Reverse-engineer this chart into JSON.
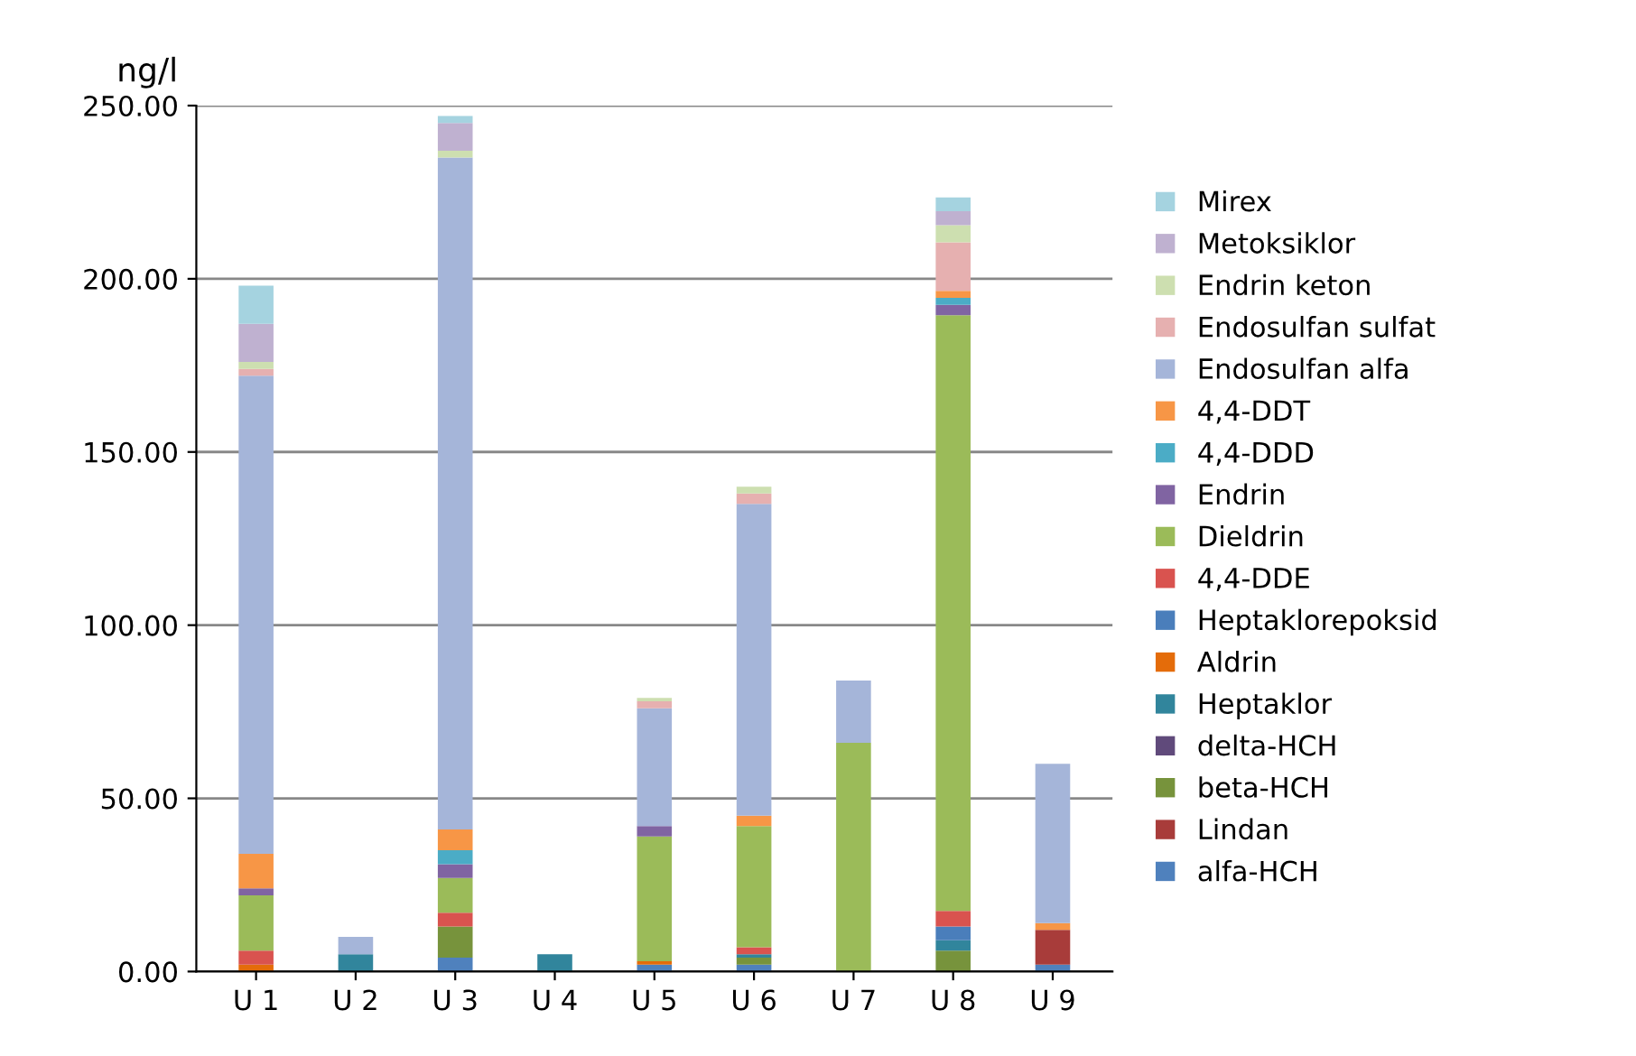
{
  "chart_data": {
    "type": "bar",
    "stacked": true,
    "ylabel": "ng/l",
    "categories": [
      "U 1",
      "U 2",
      "U 3",
      "U 4",
      "U 5",
      "U 6",
      "U 7",
      "U 8",
      "U 9"
    ],
    "series": [
      {
        "name": "alfa-HCH",
        "color": "#4f81bd",
        "values": [
          0,
          0,
          4,
          0,
          2,
          2,
          0,
          0,
          2
        ]
      },
      {
        "name": "Lindan",
        "color": "#a83c3a",
        "values": [
          0,
          0,
          0,
          0,
          0,
          0,
          0,
          0,
          10
        ]
      },
      {
        "name": "beta-HCH",
        "color": "#77933c",
        "values": [
          0,
          0,
          9,
          0,
          0,
          2,
          0,
          6,
          0
        ]
      },
      {
        "name": "delta-HCH",
        "color": "#604a7b",
        "values": [
          0,
          0,
          0,
          0,
          0,
          0,
          0,
          0,
          0
        ]
      },
      {
        "name": "Heptaklor",
        "color": "#31859c",
        "values": [
          0,
          5,
          0,
          5,
          0,
          1,
          0,
          3,
          0
        ]
      },
      {
        "name": "Aldrin",
        "color": "#e46c0a",
        "values": [
          2,
          0,
          0,
          0,
          1,
          0,
          0,
          0,
          0
        ]
      },
      {
        "name": "Heptaklorepoksid",
        "color": "#4a7ebb",
        "values": [
          0,
          0,
          0,
          0,
          0,
          0,
          0,
          4,
          0
        ]
      },
      {
        "name": "4,4-DDE",
        "color": "#d9534f",
        "values": [
          4,
          0,
          4,
          0,
          0,
          2,
          0,
          4.5,
          0
        ]
      },
      {
        "name": "Dieldrin",
        "color": "#9bbb59",
        "values": [
          16,
          0,
          10,
          0,
          36,
          35,
          66,
          172,
          0
        ]
      },
      {
        "name": "Endrin",
        "color": "#8064a2",
        "values": [
          2,
          0,
          4,
          0,
          3,
          0,
          0,
          3,
          0
        ]
      },
      {
        "name": "4,4-DDD",
        "color": "#4bacc6",
        "values": [
          0,
          0,
          4,
          0,
          0,
          0,
          0,
          2,
          0
        ]
      },
      {
        "name": "4,4-DDT",
        "color": "#f79646",
        "values": [
          10,
          0,
          6,
          0,
          0,
          3,
          0,
          2,
          2
        ]
      },
      {
        "name": "Endosulfan alfa",
        "color": "#a5b5d9",
        "values": [
          138,
          5,
          194,
          0,
          34,
          90,
          18,
          0,
          46
        ]
      },
      {
        "name": "Endosulfan sulfat",
        "color": "#e6b0b0",
        "values": [
          2,
          0,
          0,
          0,
          2,
          3,
          0,
          14,
          0
        ]
      },
      {
        "name": "Endrin keton",
        "color": "#cddfb0",
        "values": [
          2,
          0,
          2,
          0,
          1,
          2,
          0,
          5,
          0
        ]
      },
      {
        "name": "Metoksiklor",
        "color": "#bfb1d0",
        "values": [
          11,
          0,
          8,
          0,
          0,
          0,
          0,
          4,
          0
        ]
      },
      {
        "name": "Mirex",
        "color": "#a5d3e0",
        "values": [
          11,
          0,
          2,
          0,
          0,
          0,
          0,
          4,
          0
        ]
      }
    ],
    "ylim": [
      0,
      250
    ],
    "yticks": [
      {
        "value": 0,
        "label": "0.00"
      },
      {
        "value": 50,
        "label": "50.00"
      },
      {
        "value": 100,
        "label": "100.00"
      },
      {
        "value": 150,
        "label": "150.00"
      },
      {
        "value": 200,
        "label": "200.00"
      },
      {
        "value": 250,
        "label": "250.00"
      }
    ],
    "grid": "y",
    "legend": "right"
  }
}
